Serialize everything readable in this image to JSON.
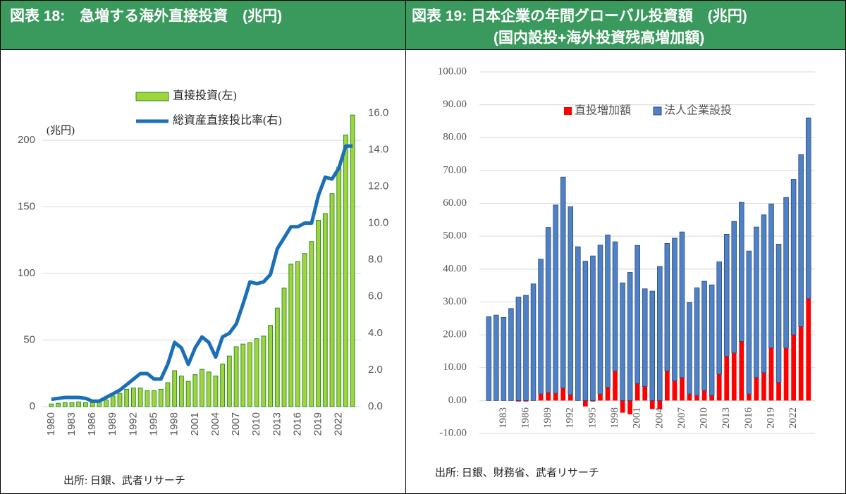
{
  "chart_data": [
    {
      "type": "combo",
      "title": "図表 18:　急増する海外直接投資　(兆円)",
      "unit_label": "(兆円)",
      "source": "出所: 日銀、武者リサーチ",
      "categories": [
        "1980",
        null,
        null,
        "1983",
        null,
        null,
        "1986",
        null,
        null,
        "1989",
        null,
        null,
        "1992",
        null,
        null,
        "1995",
        null,
        null,
        "1998",
        null,
        null,
        "2001",
        null,
        null,
        "2004",
        null,
        null,
        "2007",
        null,
        null,
        "2010",
        null,
        null,
        "2013",
        null,
        null,
        "2016",
        null,
        null,
        "2019",
        null,
        null,
        "2022",
        null,
        null
      ],
      "series": [
        {
          "name": "直接投資(左)",
          "type": "bar",
          "axis": "y",
          "color": "#9fd53a",
          "values": [
            2,
            2.5,
            3,
            3,
            3.5,
            3,
            3,
            3.5,
            5,
            8,
            10,
            13,
            14,
            14,
            12,
            12,
            13,
            18,
            27,
            23,
            19,
            24,
            28,
            26,
            23,
            32,
            38,
            45,
            47,
            48,
            51,
            53,
            61,
            74,
            89,
            107,
            109,
            115,
            124,
            140,
            145,
            160,
            180,
            204,
            219
          ]
        },
        {
          "name": "総資産直接投比率(右)",
          "type": "line",
          "axis": "y2",
          "color": "#1a6fb8",
          "values": [
            0.4,
            0.45,
            0.5,
            0.5,
            0.5,
            0.45,
            0.3,
            0.3,
            0.5,
            0.7,
            0.9,
            1.2,
            1.5,
            1.8,
            1.8,
            1.5,
            1.5,
            2.3,
            3.5,
            3.2,
            2.3,
            3.2,
            3.8,
            3.5,
            2.7,
            3.8,
            4.0,
            4.5,
            5.6,
            6.8,
            6.7,
            6.8,
            7.2,
            8.6,
            9.2,
            9.8,
            9.8,
            10.0,
            10.0,
            11.5,
            12.5,
            12.4,
            13.0,
            14.2,
            14.2
          ]
        }
      ],
      "ylim": [
        0,
        226
      ],
      "yticks": [
        0,
        50,
        100,
        150,
        200
      ],
      "y2lim": [
        0,
        16.4
      ],
      "y2ticks": [
        {
          "value": 0,
          "label": "0.0"
        },
        {
          "value": 2,
          "label": "2.0"
        },
        {
          "value": 4,
          "label": "4.0"
        },
        {
          "value": 6,
          "label": "6.0"
        },
        {
          "value": 8,
          "label": "8.0"
        },
        {
          "value": 10,
          "label": "10.0"
        },
        {
          "value": 12,
          "label": "12.0"
        },
        {
          "value": 14,
          "label": "14.0"
        },
        {
          "value": 16,
          "label": "16.0"
        }
      ],
      "grid": true
    },
    {
      "type": "stacked_bar",
      "title": "図表 19: 日本企業の年間グローバル投資額　(兆円)",
      "subtitle": "(国内設投+海外投資残高増加額)",
      "source": "出所: 日銀、財務省、武者リサーチ",
      "categories": [
        null,
        null,
        "1983",
        null,
        null,
        "1986",
        null,
        null,
        "1989",
        null,
        null,
        "1992",
        null,
        null,
        "1995",
        null,
        null,
        "1998",
        null,
        null,
        "2001",
        null,
        null,
        "2004",
        null,
        null,
        "2007",
        null,
        null,
        "2010",
        null,
        null,
        "2013",
        null,
        null,
        "2016",
        null,
        null,
        "2019",
        null,
        null,
        "2022",
        null,
        null
      ],
      "series": [
        {
          "name": "直投増加額",
          "color": "#ff0000",
          "values": [
            0,
            0,
            0,
            0,
            -0.3,
            -0.3,
            0,
            2,
            2.4,
            2.2,
            3.8,
            1.8,
            0,
            -1.8,
            -0.3,
            2,
            4,
            9,
            -3.7,
            -4.2,
            5.2,
            4.3,
            -2.6,
            -2.5,
            9,
            6,
            7,
            2,
            1.5,
            3,
            1.5,
            8,
            13.5,
            14.5,
            18,
            2,
            7,
            8.5,
            16,
            5.5,
            16,
            20,
            22.5,
            31
          ]
        },
        {
          "name": "法人企業設投",
          "color": "#4f81c7",
          "values": [
            25.5,
            26,
            25.3,
            28,
            31.5,
            32,
            35.5,
            41,
            50.3,
            57.3,
            64.2,
            57.2,
            46.8,
            42.4,
            44,
            45.3,
            46.4,
            39.3,
            35.8,
            39,
            42,
            29.7,
            33.3,
            40.8,
            38.8,
            43.4,
            44.3,
            27.8,
            32.8,
            33.3,
            33.7,
            34.2,
            37.1,
            40,
            42.3,
            43.5,
            45.8,
            48,
            43.8,
            42.1,
            45.8,
            47.3,
            52.3,
            55
          ]
        }
      ],
      "ylim": [
        -10,
        100
      ],
      "yticks": [
        {
          "value": -10,
          "label": "-10.00"
        },
        {
          "value": 0,
          "label": "0.00"
        },
        {
          "value": 10,
          "label": "10.00"
        },
        {
          "value": 20,
          "label": "20.00"
        },
        {
          "value": 30,
          "label": "30.00"
        },
        {
          "value": 40,
          "label": "40.00"
        },
        {
          "value": 50,
          "label": "50.00"
        },
        {
          "value": 60,
          "label": "60.00"
        },
        {
          "value": 70,
          "label": "70.00"
        },
        {
          "value": 80,
          "label": "80.00"
        },
        {
          "value": 90,
          "label": "90.00"
        },
        {
          "value": 100,
          "label": "100.00"
        }
      ],
      "grid": true
    }
  ]
}
